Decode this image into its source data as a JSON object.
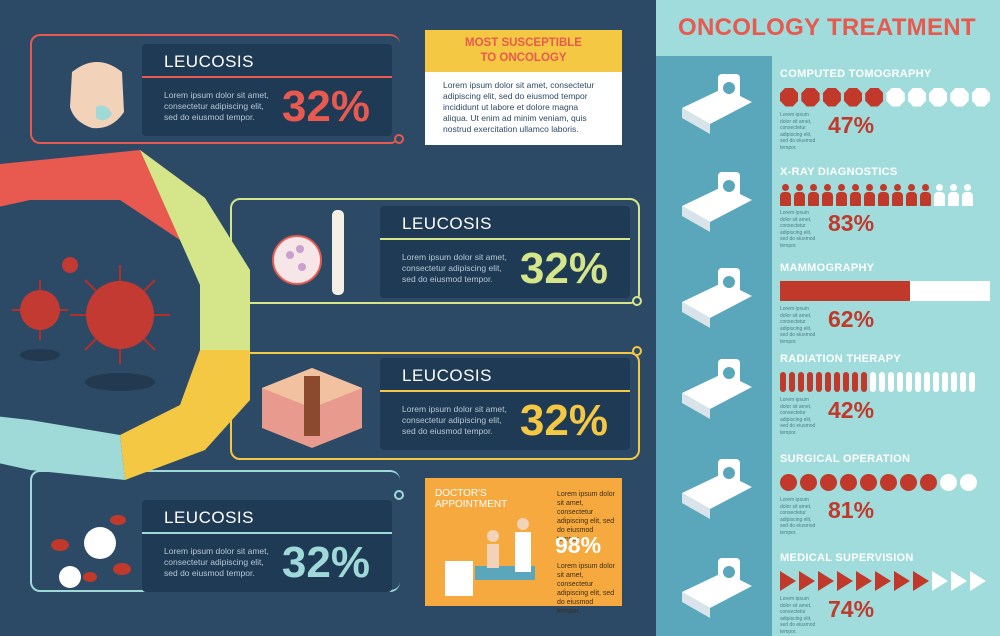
{
  "left": {
    "cards": [
      {
        "title": "LEUCOSIS",
        "desc": "Lorem ipsum dolor sit amet, consectetur adipiscing elit, sed do eiusmod tempor.",
        "pct": "32%",
        "color": "#e8594f"
      },
      {
        "title": "LEUCOSIS",
        "desc": "Lorem ipsum dolor sit amet, consectetur adipiscing elit, sed do eiusmod tempor.",
        "pct": "32%",
        "color": "#d5e58a"
      },
      {
        "title": "LEUCOSIS",
        "desc": "Lorem ipsum dolor sit amet, consectetur adipiscing elit, sed do eiusmod tempor.",
        "pct": "32%",
        "color": "#f4c842"
      },
      {
        "title": "LEUCOSIS",
        "desc": "Lorem ipsum dolor sit amet, consectetur adipiscing elit, sed do eiusmod tempor.",
        "pct": "32%",
        "color": "#9fd9d8"
      }
    ],
    "note": {
      "title_line1": "MOST SUSCEPTIBLE",
      "title_line2": "TO ONCOLOGY",
      "body": "Lorem ipsum dolor sit amet, consectetur adipiscing elit, sed do eiusmod tempor incididunt ut labore et dolore magna aliqua. Ut enim ad minim veniam, quis nostrud exercitation ullamco laboris."
    },
    "appointment": {
      "label": "DOCTOR'S APPOINTMENT",
      "text_top": "Lorem ipsum dolor sit amet, consectetur adipiscing elit, sed do eiusmod tempor.",
      "pct": "98%",
      "text_bottom": "Lorem ipsum dolor sit amet, consectetur adipiscing elit, sed do eiusmod tempor."
    }
  },
  "right": {
    "title": "ONCOLOGY TREATMENT",
    "small_text": "Lorem ipsum dolor sit amet, consectetur adipiscing elit, sed do eiusmod tempor.",
    "items": [
      {
        "name": "COMPUTED TOMOGRAPHY",
        "pct": "47%",
        "value": 0.47,
        "style": "octagons",
        "count": 10,
        "on": 5
      },
      {
        "name": "X-RAY DIAGNOSTICS",
        "pct": "83%",
        "value": 0.83,
        "style": "people",
        "count": 14,
        "on": 11
      },
      {
        "name": "MAMMOGRAPHY",
        "pct": "62%",
        "value": 0.62,
        "style": "bar"
      },
      {
        "name": "RADIATION THERAPY",
        "pct": "42%",
        "value": 0.42,
        "style": "pills",
        "count": 22,
        "on": 10
      },
      {
        "name": "SURGICAL OPERATION",
        "pct": "81%",
        "value": 0.81,
        "style": "balls",
        "count": 10,
        "on": 8
      },
      {
        "name": "MEDICAL SUPERVISION",
        "pct": "74%",
        "value": 0.74,
        "style": "triangles",
        "count": 11,
        "on": 8
      }
    ]
  },
  "colors": {
    "red": "#e8594f",
    "dark_red": "#c0392b",
    "navy": "#2c4a66",
    "teal": "#9fdcdb",
    "yellow": "#f4c842",
    "orange": "#f6a93e"
  }
}
